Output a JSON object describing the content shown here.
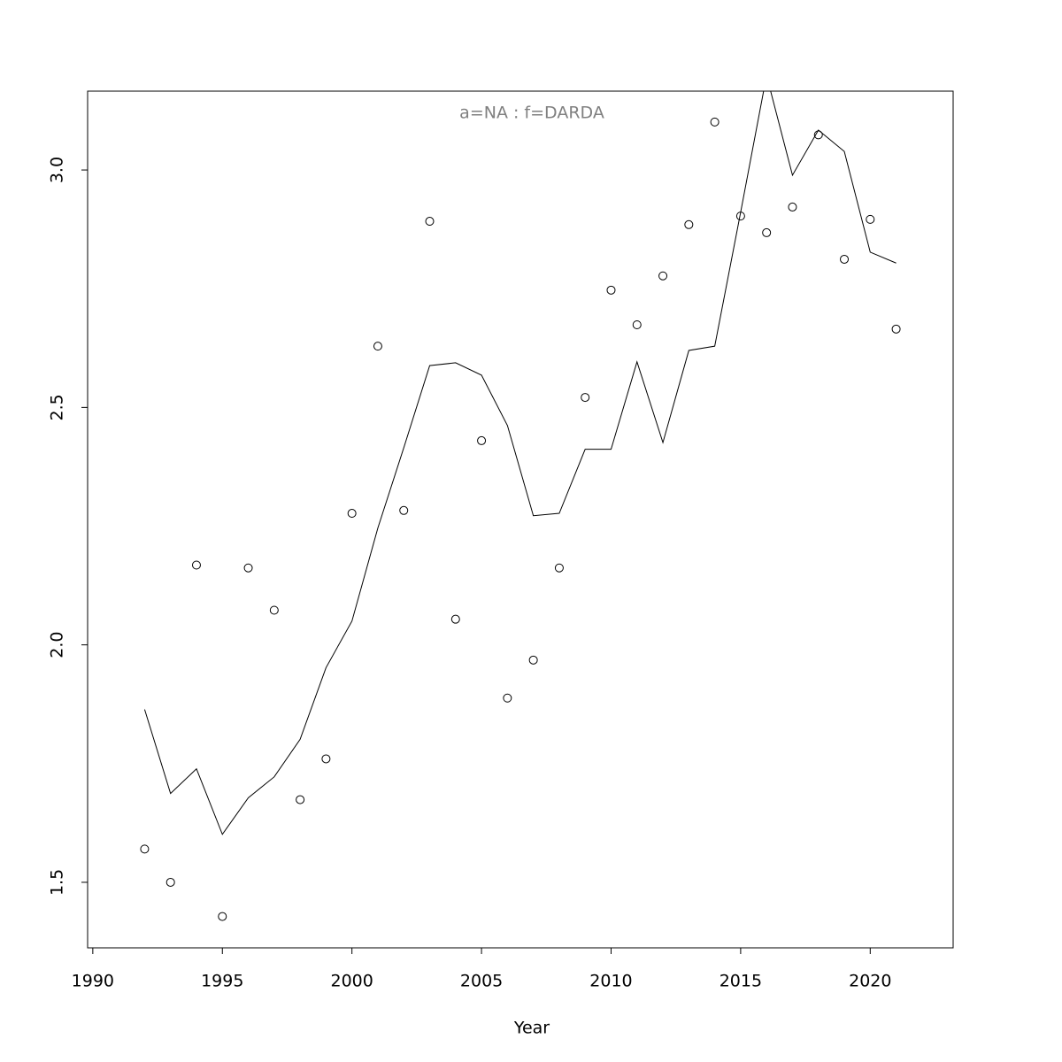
{
  "chart_data": {
    "type": "scatter",
    "title": "a=NA  :  f=DARDA",
    "xlabel": "Year",
    "x": [
      1992,
      1993,
      1994,
      1995,
      1996,
      1997,
      1998,
      1999,
      2000,
      2001,
      2002,
      2003,
      2004,
      2005,
      2006,
      2007,
      2008,
      2009,
      2010,
      2011,
      2012,
      2013,
      2014,
      2015,
      2016,
      2017,
      2018,
      2019,
      2020,
      2021
    ],
    "series": [
      {
        "mode": "points",
        "color": "#000000",
        "values": [
          1.57,
          1.5,
          2.168,
          1.428,
          2.162,
          2.073,
          1.674,
          1.76,
          2.277,
          2.629,
          2.283,
          2.892,
          2.054,
          2.43,
          1.888,
          1.968,
          2.162,
          2.521,
          2.747,
          2.674,
          2.777,
          2.885,
          3.101,
          2.903,
          2.868,
          2.922,
          3.074,
          2.812,
          2.896,
          2.665
        ]
      },
      {
        "mode": "line",
        "color": "#000000",
        "values": [
          1.864,
          1.687,
          1.739,
          1.601,
          1.678,
          1.722,
          1.801,
          1.952,
          2.05,
          2.246,
          2.415,
          2.588,
          2.594,
          2.568,
          2.462,
          2.272,
          2.277,
          2.412,
          2.412,
          2.596,
          2.426,
          2.62,
          2.629,
          2.911,
          3.199,
          2.989,
          3.084,
          3.039,
          2.827,
          2.804
        ]
      }
    ],
    "xlim": [
      1989.8,
      2023.2
    ],
    "ylim": [
      1.362,
      3.166
    ],
    "xticks": [
      1990,
      1995,
      2000,
      2005,
      2010,
      2015,
      2020
    ],
    "yticks": [
      1.5,
      {
        "value": 2,
        "label": "2.0"
      },
      2.5,
      {
        "value": 3,
        "label": "3.0"
      }
    ],
    "title_color": "#808080"
  }
}
